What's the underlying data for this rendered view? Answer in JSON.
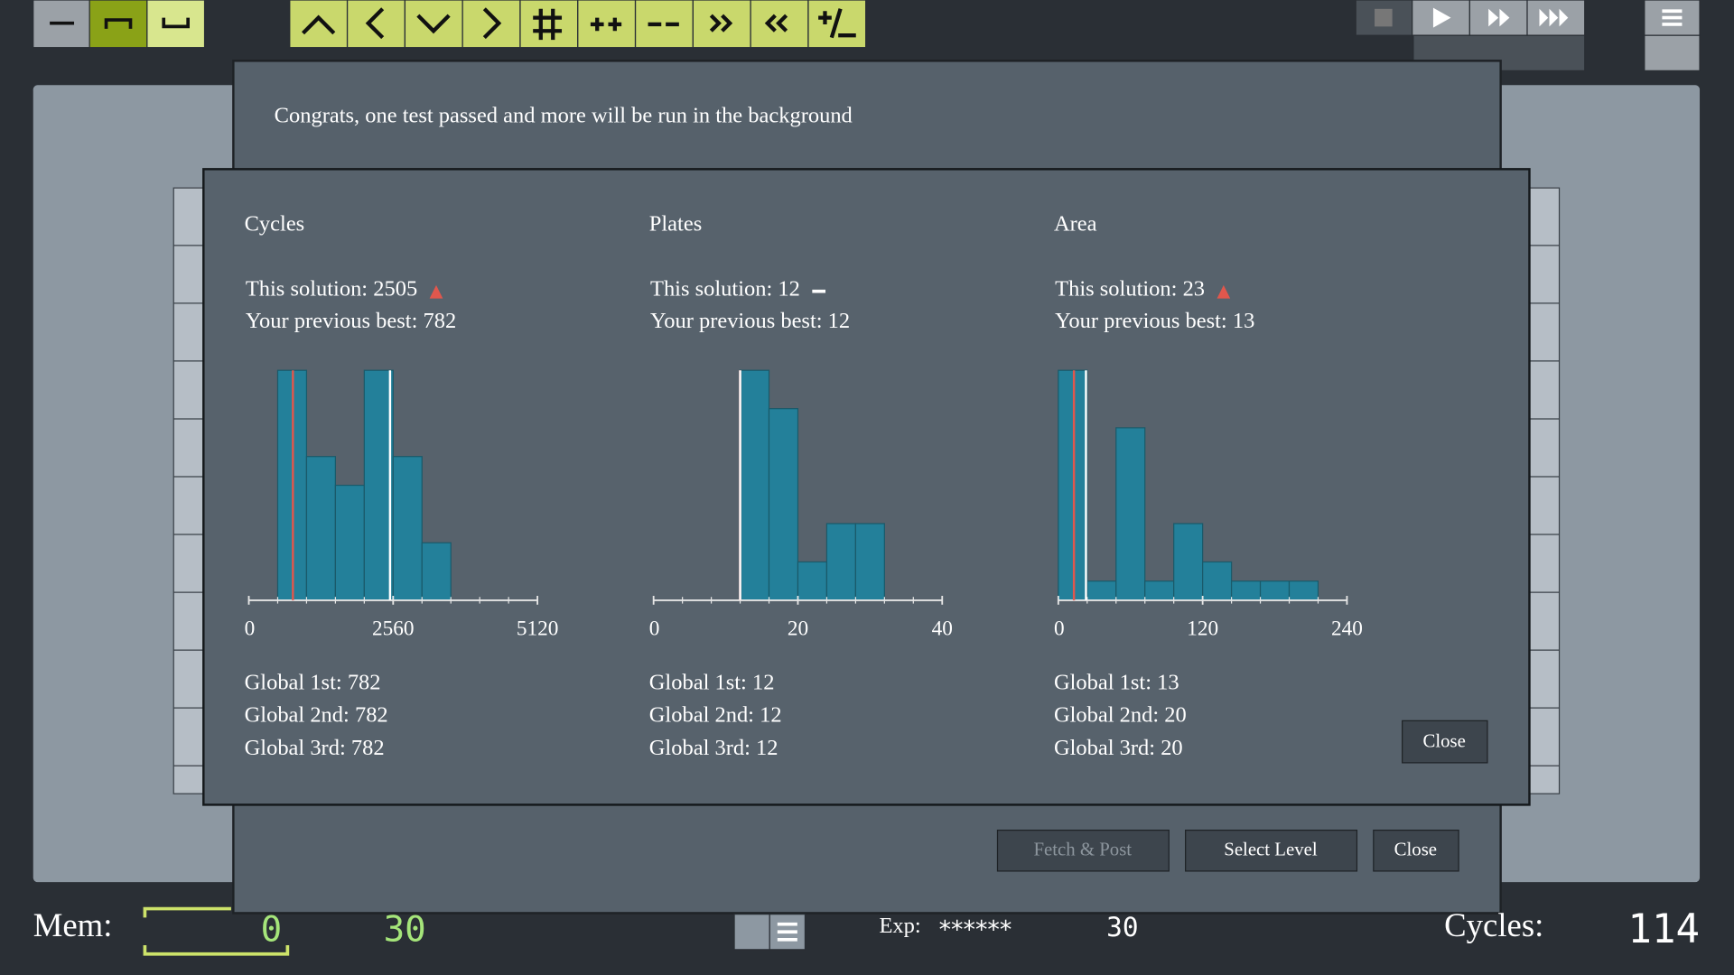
{
  "dialog": {
    "message": "Congrats, one test passed and more will be run in the background",
    "buttons": [
      "Fetch & Post",
      "Select Level",
      "Close"
    ],
    "close": "Close"
  },
  "chart_data": [
    {
      "type": "histogram",
      "title": "Cycles",
      "color": "#23809a",
      "bins": [
        512,
        1024,
        1536,
        2048,
        2560,
        3072,
        3584
      ],
      "values": [
        8,
        5,
        4,
        8,
        5,
        2
      ],
      "xlim": [
        0,
        5120
      ],
      "xticks": [
        0,
        2560,
        5120
      ],
      "ylim": [
        0,
        8
      ],
      "solution": {
        "label": "This solution:",
        "value": 2505,
        "color": "#ffffff",
        "indicator": "up",
        "indicator_color": "#e0574d"
      },
      "previous": {
        "label": "Your previous best:",
        "value": 782,
        "color": "#e0574d"
      },
      "records": [
        {
          "label": "Global 1st:",
          "value": 782
        },
        {
          "label": "Global 2nd:",
          "value": 782
        },
        {
          "label": "Global 3rd:",
          "value": 782
        }
      ]
    },
    {
      "type": "histogram",
      "title": "Plates",
      "color": "#23809a",
      "bins": [
        12,
        16,
        20,
        24,
        28,
        32
      ],
      "values": [
        6,
        5,
        1,
        2,
        2
      ],
      "xlim": [
        0,
        40
      ],
      "xticks": [
        0,
        20,
        40
      ],
      "ylim": [
        0,
        6
      ],
      "solution": {
        "label": "This solution:",
        "value": 12,
        "color": "#ffffff",
        "indicator": "flat",
        "indicator_color": "#ffffff"
      },
      "previous": {
        "label": "Your previous best:",
        "value": 12,
        "color": "#e0574d"
      },
      "records": [
        {
          "label": "Global 1st:",
          "value": 12
        },
        {
          "label": "Global 2nd:",
          "value": 12
        },
        {
          "label": "Global 3rd:",
          "value": 12
        }
      ]
    },
    {
      "type": "histogram",
      "title": "Area",
      "color": "#23809a",
      "bins": [
        0,
        24,
        48,
        72,
        96,
        120,
        144,
        168,
        192,
        216
      ],
      "values": [
        12,
        1,
        9,
        1,
        4,
        2,
        1,
        1,
        1
      ],
      "xlim": [
        0,
        240
      ],
      "xticks": [
        0,
        120,
        240
      ],
      "ylim": [
        0,
        12
      ],
      "solution": {
        "label": "This solution:",
        "value": 23,
        "color": "#ffffff",
        "indicator": "up",
        "indicator_color": "#e0574d"
      },
      "previous": {
        "label": "Your previous best:",
        "value": 13,
        "color": "#e0574d"
      },
      "records": [
        {
          "label": "Global 1st:",
          "value": 13
        },
        {
          "label": "Global 2nd:",
          "value": 20
        },
        {
          "label": "Global 3rd:",
          "value": 20
        }
      ]
    }
  ],
  "status_bar": {
    "mem_label": "Mem:",
    "mem_value": 0,
    "mem_limit": 30,
    "exp_label": "Exp:",
    "exp_value": "******",
    "exp_count": 30,
    "cycles_label": "Cycles:",
    "cycles_value": 114
  }
}
